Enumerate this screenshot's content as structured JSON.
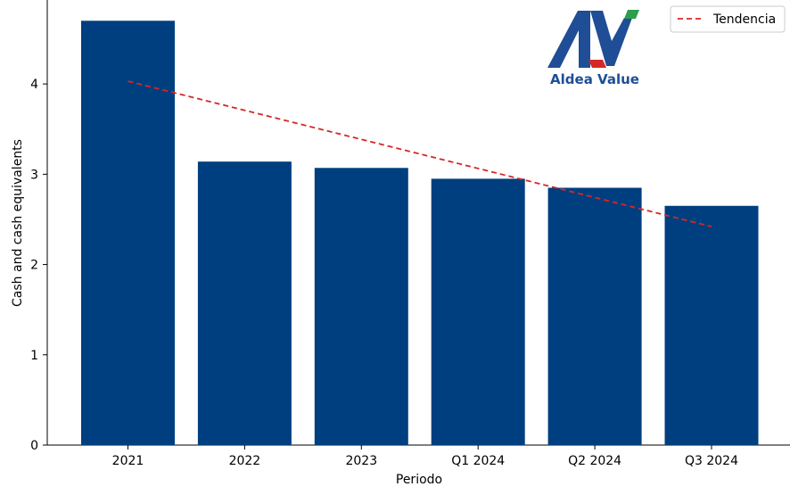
{
  "chart_data": {
    "type": "bar",
    "title": "",
    "xlabel": "Periodo",
    "ylabel": "Cash and cash equivalents",
    "categories": [
      "2021",
      "2022",
      "2023",
      "Q1 2024",
      "Q2 2024",
      "Q3 2024"
    ],
    "values": [
      4.7,
      3.14,
      3.07,
      2.95,
      2.85,
      2.65
    ],
    "ylim": [
      0,
      4.93
    ],
    "yticks": [
      0,
      1,
      2,
      3,
      4
    ],
    "bar_color": "#003f7f",
    "trend": {
      "name": "Tendencia",
      "style": "dashed",
      "color": "#d62728",
      "start": 4.03,
      "end": 2.42
    },
    "legend": {
      "position": "top-right",
      "entries": [
        "Tendencia"
      ]
    },
    "grid": false
  },
  "logo": {
    "text": "Aldea Value",
    "primary_color": "#1f4e96",
    "accent_red": "#d62728",
    "accent_green": "#2e9e4a"
  }
}
